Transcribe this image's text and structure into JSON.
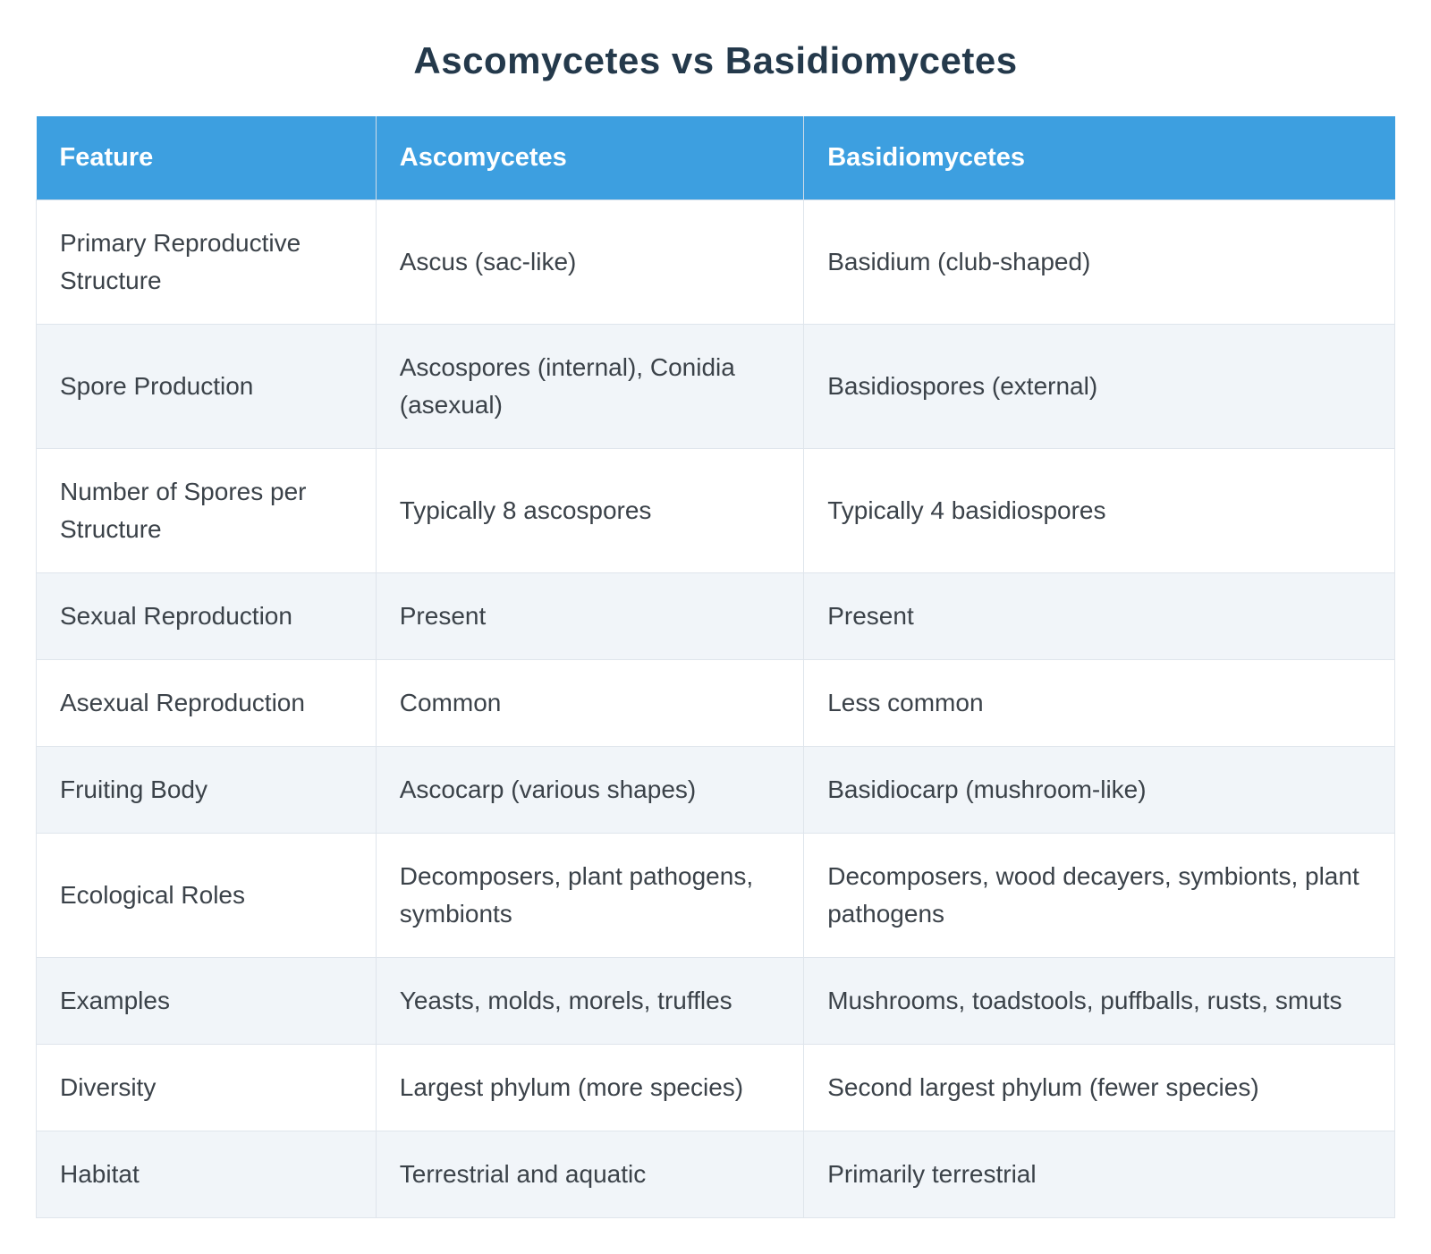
{
  "title": "Ascomycetes vs Basidiomycetes",
  "colors": {
    "header_bg": "#3d9fe0",
    "header_text": "#ffffff",
    "title_text": "#24394b",
    "row_alt_bg": "#f1f5f9",
    "cell_text": "#3b4249",
    "border": "#dfe5ec"
  },
  "chart_data": {
    "type": "table",
    "title": "Ascomycetes vs Basidiomycetes",
    "columns": [
      "Feature",
      "Ascomycetes",
      "Basidiomycetes"
    ],
    "rows": [
      [
        "Primary Reproductive Structure",
        "Ascus (sac-like)",
        "Basidium (club-shaped)"
      ],
      [
        "Spore Production",
        "Ascospores (internal), Conidia (asexual)",
        "Basidiospores (external)"
      ],
      [
        "Number of Spores per Structure",
        "Typically 8 ascospores",
        "Typically 4 basidiospores"
      ],
      [
        "Sexual Reproduction",
        "Present",
        "Present"
      ],
      [
        "Asexual Reproduction",
        "Common",
        "Less common"
      ],
      [
        "Fruiting Body",
        "Ascocarp (various shapes)",
        "Basidiocarp (mushroom-like)"
      ],
      [
        "Ecological Roles",
        "Decomposers, plant pathogens, symbionts",
        "Decomposers, wood decayers, symbionts, plant pathogens"
      ],
      [
        "Examples",
        "Yeasts, molds, morels, truffles",
        "Mushrooms, toadstools, puffballs, rusts, smuts"
      ],
      [
        "Diversity",
        "Largest phylum (more species)",
        "Second largest phylum (fewer species)"
      ],
      [
        "Habitat",
        "Terrestrial and aquatic",
        "Primarily terrestrial"
      ]
    ],
    "layout": {
      "legend": "none",
      "grid": "cell-borders",
      "striped_rows": true
    }
  }
}
